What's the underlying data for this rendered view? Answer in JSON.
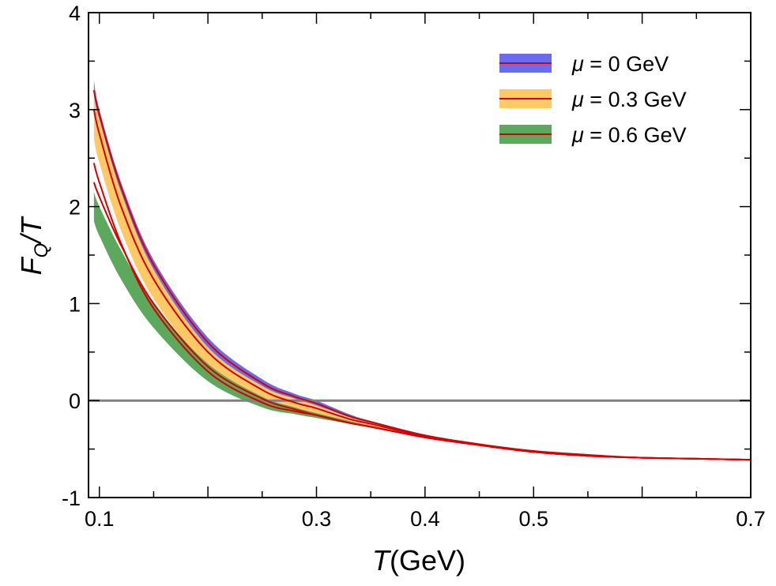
{
  "chart_data": {
    "type": "line",
    "title": "",
    "xlabel": "T(GeV)",
    "ylabel": "F_Q/T",
    "xlabel_parts": {
      "var": "T",
      "unit": "(GeV)"
    },
    "ylabel_parts": {
      "var": "F",
      "sub": "Q",
      "rest": "/T"
    },
    "xlim": [
      0.09,
      0.7
    ],
    "ylim": [
      -1,
      4
    ],
    "xticks": [
      0.1,
      0.3,
      0.4,
      0.5,
      0.7
    ],
    "xtick_labels": [
      "0.1",
      "0.3",
      "0.4",
      "0.5",
      "0.7"
    ],
    "yticks": [
      -1,
      0,
      1,
      2,
      3,
      4
    ],
    "ytick_labels": [
      "-1",
      "0",
      "1",
      "2",
      "3",
      "4"
    ],
    "reference_line": {
      "y": 0,
      "color": "#808080"
    },
    "legend_position": "top-right",
    "series": [
      {
        "name": "μ = 0 GeV",
        "legend_symbol": "μ",
        "legend_text": " = 0 GeV",
        "band_color": "#6b6bef",
        "line_color": "#d60000",
        "x": [
          0.095,
          0.1,
          0.12,
          0.15,
          0.2,
          0.25,
          0.28,
          0.3,
          0.33,
          0.35,
          0.4,
          0.45,
          0.5,
          0.55,
          0.6,
          0.65,
          0.7
        ],
        "upper": [
          3.3,
          3.0,
          2.25,
          1.45,
          0.65,
          0.22,
          0.07,
          0.0,
          -0.14,
          -0.21,
          -0.35,
          -0.45,
          -0.52,
          -0.56,
          -0.59,
          -0.6,
          -0.61
        ],
        "lower": [
          2.95,
          2.7,
          1.95,
          1.2,
          0.45,
          0.08,
          -0.04,
          -0.1,
          -0.2,
          -0.25,
          -0.37,
          -0.46,
          -0.53,
          -0.57,
          -0.59,
          -0.6,
          -0.61
        ],
        "central_lines": [
          [
            3.2,
            2.95,
            2.2,
            1.4,
            0.6,
            0.18,
            0.04,
            -0.03,
            -0.16,
            -0.22,
            -0.36,
            -0.45,
            -0.52,
            -0.56,
            -0.59,
            -0.6,
            -0.61
          ],
          [
            3.0,
            2.75,
            2.0,
            1.25,
            0.5,
            0.11,
            -0.02,
            -0.08,
            -0.19,
            -0.24,
            -0.37,
            -0.46,
            -0.53,
            -0.57,
            -0.59,
            -0.6,
            -0.61
          ]
        ]
      },
      {
        "name": "μ = 0.3 GeV",
        "legend_symbol": "μ",
        "legend_text": " = 0.3 GeV",
        "band_color": "#ffc966",
        "line_color": "#d60000",
        "x": [
          0.095,
          0.1,
          0.12,
          0.15,
          0.2,
          0.25,
          0.28,
          0.3,
          0.33,
          0.35,
          0.4,
          0.45,
          0.5,
          0.55,
          0.6,
          0.65,
          0.7
        ],
        "upper": [
          3.15,
          2.9,
          2.15,
          1.35,
          0.55,
          0.15,
          0.02,
          -0.05,
          -0.17,
          -0.23,
          -0.36,
          -0.45,
          -0.52,
          -0.56,
          -0.59,
          -0.6,
          -0.61
        ],
        "lower": [
          2.7,
          2.45,
          1.75,
          1.05,
          0.35,
          0.0,
          -0.1,
          -0.14,
          -0.22,
          -0.27,
          -0.38,
          -0.46,
          -0.53,
          -0.57,
          -0.59,
          -0.6,
          -0.61
        ],
        "central_lines": [
          [
            2.45,
            2.25,
            1.62,
            0.95,
            0.3,
            -0.02,
            -0.11,
            -0.15,
            -0.23,
            -0.27,
            -0.38,
            -0.46,
            -0.53,
            -0.57,
            -0.59,
            -0.6,
            -0.61
          ]
        ]
      },
      {
        "name": "μ = 0.6 GeV",
        "legend_symbol": "μ",
        "legend_text": " = 0.6 GeV",
        "band_color": "#5ca85c",
        "line_color": "#d60000",
        "x": [
          0.095,
          0.1,
          0.12,
          0.15,
          0.2,
          0.25,
          0.28,
          0.3,
          0.33,
          0.35,
          0.4,
          0.45,
          0.5,
          0.55,
          0.6,
          0.65,
          0.7
        ],
        "upper": [
          2.15,
          2.0,
          1.55,
          1.0,
          0.38,
          0.04,
          -0.07,
          -0.13,
          -0.21,
          -0.26,
          -0.37,
          -0.46,
          -0.53,
          -0.57,
          -0.59,
          -0.6,
          -0.61
        ],
        "lower": [
          1.85,
          1.7,
          1.25,
          0.75,
          0.2,
          -0.07,
          -0.14,
          -0.18,
          -0.24,
          -0.28,
          -0.38,
          -0.46,
          -0.53,
          -0.57,
          -0.59,
          -0.6,
          -0.61
        ],
        "central_lines": [
          [
            2.25,
            2.1,
            1.6,
            1.0,
            0.35,
            0.02,
            -0.09,
            -0.15,
            -0.23,
            -0.27,
            -0.38,
            -0.46,
            -0.53,
            -0.57,
            -0.59,
            -0.6,
            -0.61
          ]
        ]
      }
    ]
  }
}
